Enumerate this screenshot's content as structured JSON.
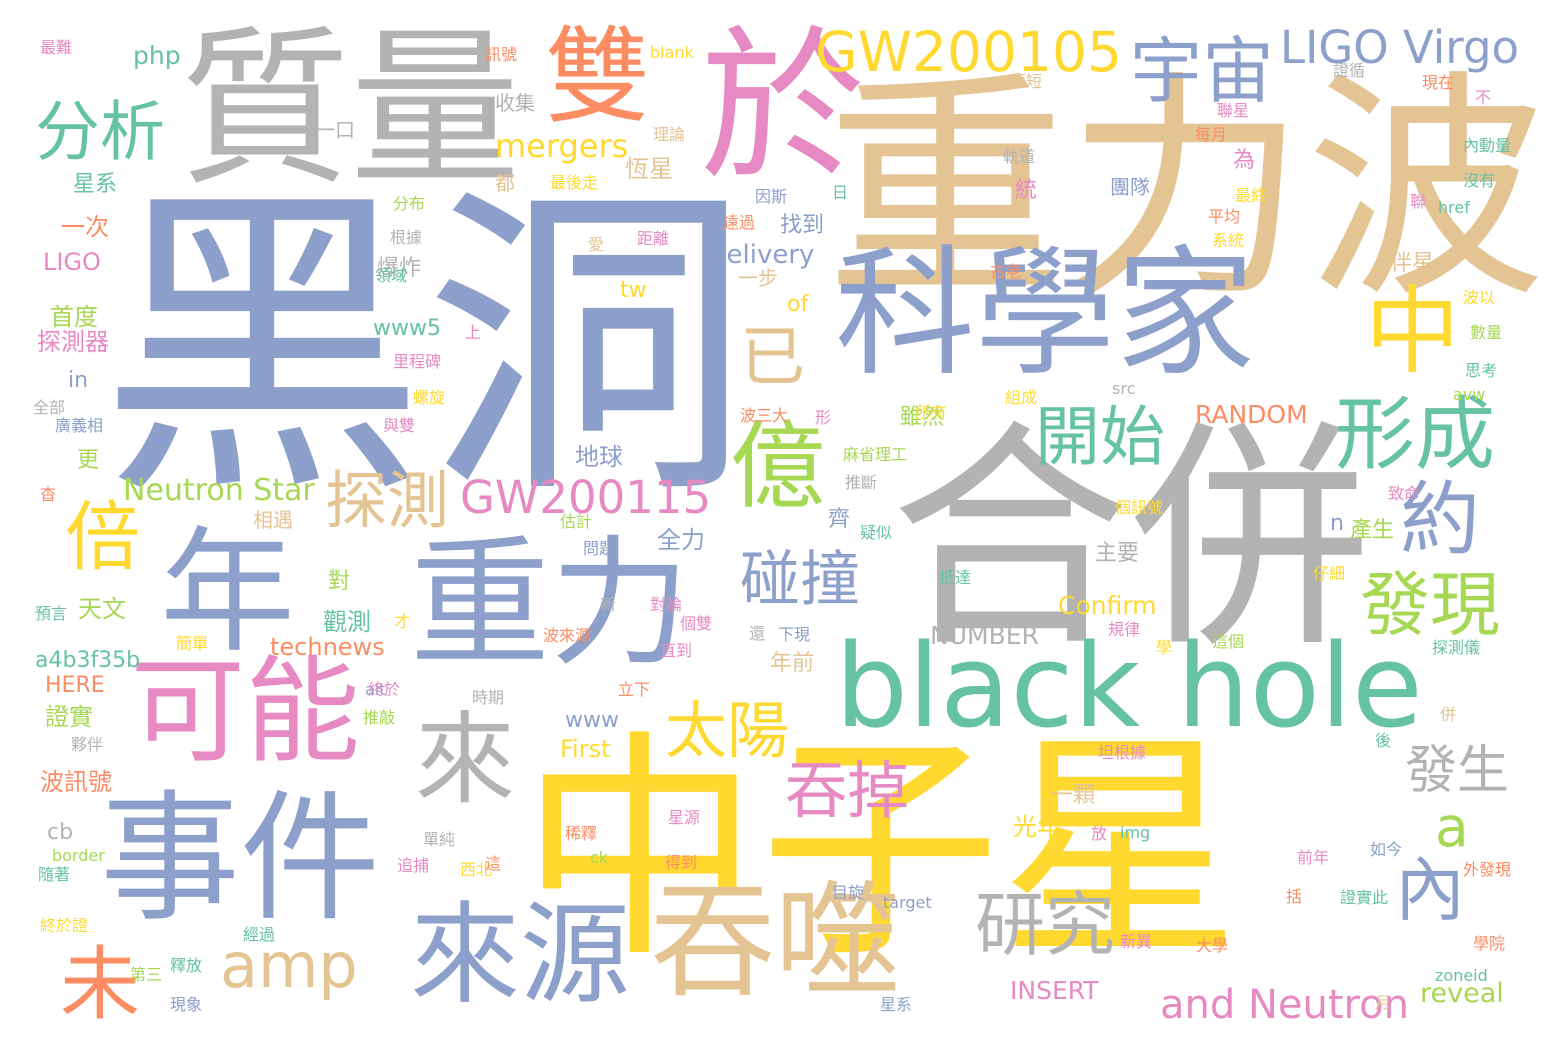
{
  "palette": {
    "blue": "#8da0cb",
    "yellow": "#ffd92f",
    "tan": "#e5c494",
    "gray": "#b3b3b3",
    "green": "#66c2a5",
    "orange": "#fc8d62",
    "pink": "#e78ac3",
    "lime": "#a6d854"
  },
  "words": [
    {
      "text": "黑洞",
      "color": "blue"
    },
    {
      "text": "重力波",
      "color": "tan"
    },
    {
      "text": "中子星",
      "color": "yellow"
    },
    {
      "text": "合併",
      "color": "gray"
    },
    {
      "text": "質量",
      "color": "gray"
    },
    {
      "text": "於",
      "color": "pink"
    },
    {
      "text": "科學家",
      "color": "blue"
    },
    {
      "text": "black hole",
      "color": "green"
    },
    {
      "text": "年",
      "color": "blue"
    },
    {
      "text": "重力",
      "color": "blue"
    },
    {
      "text": "事件",
      "color": "blue"
    },
    {
      "text": "可能",
      "color": "pink"
    },
    {
      "text": "吞噬",
      "color": "tan"
    },
    {
      "text": "來源",
      "color": "blue"
    },
    {
      "text": "雙",
      "color": "orange"
    },
    {
      "text": "億",
      "color": "lime"
    },
    {
      "text": "宇宙",
      "color": "blue"
    },
    {
      "text": "中",
      "color": "yellow"
    },
    {
      "text": "GW200105",
      "color": "yellow"
    },
    {
      "text": "LIGO Virgo",
      "color": "blue"
    },
    {
      "text": "分析",
      "color": "green"
    },
    {
      "text": "來",
      "color": "gray"
    },
    {
      "text": "形成",
      "color": "green"
    },
    {
      "text": "開始",
      "color": "green"
    },
    {
      "text": "約",
      "color": "blue"
    },
    {
      "text": "發現",
      "color": "lime"
    },
    {
      "text": "探測",
      "color": "tan"
    },
    {
      "text": "碰撞",
      "color": "blue"
    },
    {
      "text": "GW200115",
      "color": "pink"
    },
    {
      "text": "倍",
      "color": "yellow"
    },
    {
      "text": "太陽",
      "color": "yellow"
    },
    {
      "text": "吞掉",
      "color": "pink"
    },
    {
      "text": "amp",
      "color": "tan"
    },
    {
      "text": "未",
      "color": "orange"
    },
    {
      "text": "研究",
      "color": "gray"
    },
    {
      "text": "內",
      "color": "blue"
    },
    {
      "text": "a",
      "color": "lime"
    },
    {
      "text": "已",
      "color": "tan"
    },
    {
      "text": "發生",
      "color": "gray"
    },
    {
      "text": "and Neutron",
      "color": "pink"
    },
    {
      "text": "mergers",
      "color": "yellow"
    },
    {
      "text": "Neutron Star",
      "color": "lime"
    },
    {
      "text": "delivery",
      "color": "blue"
    },
    {
      "text": "technews",
      "color": "orange"
    },
    {
      "text": "Confirm",
      "color": "yellow"
    },
    {
      "text": "RANDOM",
      "color": "orange"
    },
    {
      "text": "NUMBER",
      "color": "gray"
    },
    {
      "text": "INSERT",
      "color": "pink"
    },
    {
      "text": "reveal",
      "color": "lime"
    },
    {
      "text": "a4b3f35b",
      "color": "green"
    },
    {
      "text": "First",
      "color": "yellow"
    },
    {
      "text": "www",
      "color": "blue"
    },
    {
      "text": "www5",
      "color": "green"
    },
    {
      "text": "HERE",
      "color": "orange"
    },
    {
      "text": "LIGO",
      "color": "pink"
    },
    {
      "text": "php",
      "color": "green"
    },
    {
      "text": "in",
      "color": "blue"
    },
    {
      "text": "of",
      "color": "yellow"
    },
    {
      "text": "tw",
      "color": "yellow"
    },
    {
      "text": "n",
      "color": "blue"
    },
    {
      "text": "cb",
      "color": "gray"
    },
    {
      "text": "星系",
      "color": "green"
    },
    {
      "text": "一次",
      "color": "orange"
    },
    {
      "text": "首度",
      "color": "lime"
    },
    {
      "text": "探測器",
      "color": "pink"
    },
    {
      "text": "收集",
      "color": "gray"
    },
    {
      "text": "都",
      "color": "tan"
    },
    {
      "text": "恆星",
      "color": "tan"
    },
    {
      "text": "團隊",
      "color": "blue"
    },
    {
      "text": "找到",
      "color": "blue"
    },
    {
      "text": "一步",
      "color": "tan"
    },
    {
      "text": "伴星",
      "color": "tan"
    },
    {
      "text": "爆炸",
      "color": "gray"
    },
    {
      "text": "雖然",
      "color": "lime"
    },
    {
      "text": "地球",
      "color": "blue"
    },
    {
      "text": "相遇",
      "color": "tan"
    },
    {
      "text": "全力",
      "color": "blue"
    },
    {
      "text": "產生",
      "color": "lime"
    },
    {
      "text": "天文",
      "color": "lime"
    },
    {
      "text": "觀測",
      "color": "green"
    },
    {
      "text": "對",
      "color": "lime"
    },
    {
      "text": "年前",
      "color": "tan"
    },
    {
      "text": "證實",
      "color": "lime"
    },
    {
      "text": "波訊號",
      "color": "orange"
    },
    {
      "text": "光年",
      "color": "yellow"
    },
    {
      "text": "一顆",
      "color": "tan"
    },
    {
      "text": "更",
      "color": "lime"
    },
    {
      "text": "主要",
      "color": "gray"
    },
    {
      "text": "齊",
      "color": "blue"
    },
    {
      "text": "為",
      "color": "pink"
    },
    {
      "text": "統",
      "color": "pink"
    },
    {
      "text": "一口",
      "color": "gray"
    },
    {
      "text": "最難",
      "color": "pink"
    },
    {
      "text": "訊號",
      "color": "orange"
    },
    {
      "text": "blank",
      "color": "yellow"
    },
    {
      "text": "理論",
      "color": "tan"
    },
    {
      "text": "最後走",
      "color": "yellow"
    },
    {
      "text": "短短",
      "color": "tan"
    },
    {
      "text": "證循",
      "color": "gray"
    },
    {
      "text": "現在",
      "color": "orange"
    },
    {
      "text": "不",
      "color": "pink"
    },
    {
      "text": "聯星",
      "color": "pink"
    },
    {
      "text": "每月",
      "color": "orange"
    },
    {
      "text": "內動量",
      "color": "green"
    },
    {
      "text": "軌道",
      "color": "gray"
    },
    {
      "text": "沒有",
      "color": "green"
    },
    {
      "text": "因斯",
      "color": "blue"
    },
    {
      "text": "日",
      "color": "green"
    },
    {
      "text": "最終",
      "color": "yellow"
    },
    {
      "text": "href",
      "color": "green"
    },
    {
      "text": "平均",
      "color": "orange"
    },
    {
      "text": "遠過",
      "color": "orange"
    },
    {
      "text": "距離",
      "color": "pink"
    },
    {
      "text": "分布",
      "color": "lime"
    },
    {
      "text": "根據",
      "color": "gray"
    },
    {
      "text": "系統",
      "color": "yellow"
    },
    {
      "text": "領域",
      "color": "green"
    },
    {
      "text": "古老",
      "color": "orange"
    },
    {
      "text": "波以",
      "color": "yellow"
    },
    {
      "text": "數量",
      "color": "lime"
    },
    {
      "text": "思考",
      "color": "green"
    },
    {
      "text": "上",
      "color": "pink"
    },
    {
      "text": "里程碑",
      "color": "pink"
    },
    {
      "text": "螺旋",
      "color": "yellow"
    },
    {
      "text": "與雙",
      "color": "pink"
    },
    {
      "text": "全部",
      "color": "gray"
    },
    {
      "text": "廣義相",
      "color": "blue"
    },
    {
      "text": "src",
      "color": "gray"
    },
    {
      "text": "組成",
      "color": "yellow"
    },
    {
      "text": "所有",
      "color": "yellow"
    },
    {
      "text": "波三大",
      "color": "orange"
    },
    {
      "text": "麻省理工",
      "color": "lime"
    },
    {
      "text": "推斷",
      "color": "gray"
    },
    {
      "text": "致命",
      "color": "pink"
    },
    {
      "text": "疑似",
      "color": "green"
    },
    {
      "text": "個訊號",
      "color": "yellow"
    },
    {
      "text": "估計",
      "color": "lime"
    },
    {
      "text": "問題",
      "color": "blue"
    },
    {
      "text": "仔細",
      "color": "yellow"
    },
    {
      "text": "抵達",
      "color": "green"
    },
    {
      "text": "預言",
      "color": "green"
    },
    {
      "text": "新",
      "color": "gray"
    },
    {
      "text": "對論",
      "color": "pink"
    },
    {
      "text": "個雙",
      "color": "pink"
    },
    {
      "text": "直到",
      "color": "pink"
    },
    {
      "text": "波來源",
      "color": "orange"
    },
    {
      "text": "還",
      "color": "gray"
    },
    {
      "text": "下現",
      "color": "blue"
    },
    {
      "text": "才",
      "color": "yellow"
    },
    {
      "text": "簡單",
      "color": "yellow"
    },
    {
      "text": "規律",
      "color": "pink"
    },
    {
      "text": "學",
      "color": "yellow"
    },
    {
      "text": "這個",
      "color": "lime"
    },
    {
      "text": "探測儀",
      "color": "green"
    },
    {
      "text": "alt",
      "color": "blue"
    },
    {
      "text": "終於",
      "color": "pink"
    },
    {
      "text": "時期",
      "color": "gray"
    },
    {
      "text": "立下",
      "color": "orange"
    },
    {
      "text": "推敲",
      "color": "lime"
    },
    {
      "text": "夥伴",
      "color": "gray"
    },
    {
      "text": "後",
      "color": "green"
    },
    {
      "text": "坦根據",
      "color": "pink"
    },
    {
      "text": "併",
      "color": "tan"
    },
    {
      "text": "放",
      "color": "pink"
    },
    {
      "text": "img",
      "color": "green"
    },
    {
      "text": "單純",
      "color": "gray"
    },
    {
      "text": "釋放",
      "color": "green"
    },
    {
      "text": "第三",
      "color": "lime"
    },
    {
      "text": "現象",
      "color": "blue"
    },
    {
      "text": "追捕",
      "color": "pink"
    },
    {
      "text": "西北",
      "color": "yellow"
    },
    {
      "text": "這",
      "color": "orange"
    },
    {
      "text": "稀釋",
      "color": "orange"
    },
    {
      "text": "ck",
      "color": "lime"
    },
    {
      "text": "得到",
      "color": "orange"
    },
    {
      "text": "星源",
      "color": "pink"
    },
    {
      "text": "前年",
      "color": "pink"
    },
    {
      "text": "如今",
      "color": "blue"
    },
    {
      "text": "外發現",
      "color": "orange"
    },
    {
      "text": "border",
      "color": "lime"
    },
    {
      "text": "隨著",
      "color": "green"
    },
    {
      "text": "終於證",
      "color": "yellow"
    },
    {
      "text": "經過",
      "color": "green"
    },
    {
      "text": "目旋",
      "color": "blue"
    },
    {
      "text": "target",
      "color": "blue"
    },
    {
      "text": "括",
      "color": "orange"
    },
    {
      "text": "證實此",
      "color": "green"
    },
    {
      "text": "新異",
      "color": "pink"
    },
    {
      "text": "大學",
      "color": "orange"
    },
    {
      "text": "學院",
      "color": "orange"
    },
    {
      "text": "zoneid",
      "color": "green"
    },
    {
      "text": "星系",
      "color": "blue"
    },
    {
      "text": "月",
      "color": "tan"
    },
    {
      "text": "杳",
      "color": "orange"
    },
    {
      "text": "形",
      "color": "pink"
    },
    {
      "text": "avw",
      "color": "lime"
    },
    {
      "text": "聯",
      "color": "pink"
    },
    {
      "text": "愛",
      "color": "tan"
    }
  ]
}
